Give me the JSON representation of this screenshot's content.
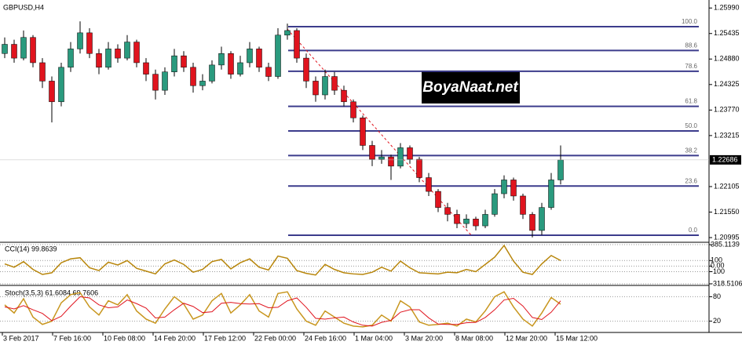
{
  "chart_data": {
    "type": "candlestick",
    "title": "GBPUSD,H4",
    "bull_color": "#2a9a7e",
    "bear_color": "#e0141e",
    "ylim": [
      1.2091,
      1.2613
    ],
    "yticks": [
      {
        "value": 1.2599,
        "label": "1.25990"
      },
      {
        "value": 1.25435,
        "label": "1.25435"
      },
      {
        "value": 1.2488,
        "label": "1.24880"
      },
      {
        "value": 1.24325,
        "label": "1.24325"
      },
      {
        "value": 1.2377,
        "label": "1.23770"
      },
      {
        "value": 1.23215,
        "label": "1.23215"
      },
      {
        "value": 1.22105,
        "label": "1.22105"
      },
      {
        "value": 1.2155,
        "label": "1.21550"
      },
      {
        "value": 1.20995,
        "label": "1.20995"
      }
    ],
    "current_price": 1.22686,
    "ohlc": [
      [
        1.25,
        1.2535,
        1.249,
        1.252
      ],
      [
        1.252,
        1.253,
        1.248,
        1.249
      ],
      [
        1.249,
        1.255,
        1.2485,
        1.2535
      ],
      [
        1.2535,
        1.254,
        1.247,
        1.248
      ],
      [
        1.248,
        1.249,
        1.2425,
        1.244
      ],
      [
        1.244,
        1.245,
        1.235,
        1.2395
      ],
      [
        1.2395,
        1.248,
        1.2385,
        1.247
      ],
      [
        1.247,
        1.2525,
        1.246,
        1.251
      ],
      [
        1.251,
        1.257,
        1.25,
        1.2545
      ],
      [
        1.2545,
        1.2555,
        1.249,
        1.25
      ],
      [
        1.25,
        1.251,
        1.2455,
        1.247
      ],
      [
        1.247,
        1.2525,
        1.2465,
        1.251
      ],
      [
        1.251,
        1.252,
        1.248,
        1.249
      ],
      [
        1.249,
        1.254,
        1.2485,
        1.2525
      ],
      [
        1.2525,
        1.253,
        1.247,
        1.248
      ],
      [
        1.248,
        1.249,
        1.244,
        1.2455
      ],
      [
        1.2455,
        1.2465,
        1.24,
        1.242
      ],
      [
        1.242,
        1.247,
        1.241,
        1.246
      ],
      [
        1.246,
        1.251,
        1.245,
        1.2495
      ],
      [
        1.2495,
        1.2505,
        1.246,
        1.247
      ],
      [
        1.247,
        1.248,
        1.2415,
        1.243
      ],
      [
        1.243,
        1.2455,
        1.242,
        1.244
      ],
      [
        1.244,
        1.2485,
        1.2435,
        1.2475
      ],
      [
        1.2475,
        1.2515,
        1.2465,
        1.25
      ],
      [
        1.25,
        1.2505,
        1.2445,
        1.2455
      ],
      [
        1.2455,
        1.2495,
        1.245,
        1.248
      ],
      [
        1.248,
        1.2525,
        1.247,
        1.251
      ],
      [
        1.251,
        1.2515,
        1.246,
        1.247
      ],
      [
        1.247,
        1.248,
        1.244,
        1.245
      ],
      [
        1.245,
        1.2555,
        1.2445,
        1.254
      ],
      [
        1.254,
        1.2565,
        1.253,
        1.255
      ],
      [
        1.255,
        1.2555,
        1.248,
        1.249
      ],
      [
        1.249,
        1.25,
        1.2425,
        1.244
      ],
      [
        1.244,
        1.245,
        1.2395,
        1.241
      ],
      [
        1.241,
        1.2465,
        1.24,
        1.245
      ],
      [
        1.245,
        1.246,
        1.241,
        1.242
      ],
      [
        1.242,
        1.243,
        1.2385,
        1.2395
      ],
      [
        1.2395,
        1.24,
        1.235,
        1.236
      ],
      [
        1.236,
        1.2365,
        1.229,
        1.23
      ],
      [
        1.23,
        1.231,
        1.2255,
        1.227
      ],
      [
        1.227,
        1.229,
        1.226,
        1.2275
      ],
      [
        1.2275,
        1.228,
        1.2225,
        1.2255
      ],
      [
        1.2255,
        1.2305,
        1.225,
        1.2295
      ],
      [
        1.2295,
        1.23,
        1.226,
        1.227
      ],
      [
        1.227,
        1.2275,
        1.222,
        1.223
      ],
      [
        1.223,
        1.224,
        1.219,
        1.22
      ],
      [
        1.22,
        1.2205,
        1.2155,
        1.2165
      ],
      [
        1.2165,
        1.2175,
        1.2135,
        1.215
      ],
      [
        1.215,
        1.216,
        1.212,
        1.213
      ],
      [
        1.213,
        1.215,
        1.212,
        1.214
      ],
      [
        1.214,
        1.2145,
        1.2115,
        1.2125
      ],
      [
        1.2125,
        1.216,
        1.212,
        1.215
      ],
      [
        1.215,
        1.2205,
        1.2145,
        1.2195
      ],
      [
        1.2195,
        1.2235,
        1.2185,
        1.2225
      ],
      [
        1.2225,
        1.223,
        1.218,
        1.219
      ],
      [
        1.219,
        1.2195,
        1.214,
        1.215
      ],
      [
        1.215,
        1.2155,
        1.21,
        1.2115
      ],
      [
        1.2115,
        1.2175,
        1.2105,
        1.2165
      ],
      [
        1.2165,
        1.224,
        1.216,
        1.2225
      ],
      [
        1.2225,
        1.23,
        1.2215,
        1.22686
      ]
    ],
    "fib": {
      "color": "#3c3c8c",
      "levels": [
        {
          "label": "100.0",
          "price": 1.25584
        },
        {
          "label": "88.6",
          "price": 1.25067
        },
        {
          "label": "78.6",
          "price": 1.24613
        },
        {
          "label": "61.8",
          "price": 1.23851
        },
        {
          "label": "50.0",
          "price": 1.23315
        },
        {
          "label": "38.2",
          "price": 1.2278
        },
        {
          "label": "23.6",
          "price": 1.22117
        },
        {
          "label": "0.0",
          "price": 1.21046
        }
      ]
    },
    "trendline": {
      "start": 1.2553,
      "end": 1.2105,
      "color": "#e0141e"
    },
    "watermark": "BoyaNaat.net",
    "cci": {
      "title": "CCI(14) 99.8639",
      "color": "#b8860b",
      "ylim": [
        -318.5106,
        385.1139
      ],
      "yticks": [
        385.1139,
        100,
        {
          "value": 0,
          "label": "0.00"
        },
        -100,
        -318.5106
      ],
      "values": [
        40,
        -20,
        80,
        -60,
        -150,
        -120,
        60,
        130,
        150,
        -30,
        -80,
        70,
        20,
        100,
        -40,
        -90,
        -140,
        40,
        110,
        30,
        -110,
        -60,
        80,
        120,
        -50,
        60,
        130,
        -20,
        -70,
        180,
        140,
        -80,
        -130,
        -160,
        30,
        -60,
        -120,
        -140,
        -150,
        -110,
        -20,
        -90,
        90,
        -30,
        -120,
        -130,
        -140,
        -110,
        -120,
        -60,
        -100,
        30,
        160,
        370,
        90,
        -110,
        -150,
        40,
        190,
        99.8639
      ]
    },
    "stoch": {
      "title": "Stoch(3,5,3) 61.6084 69.7606",
      "ylim": [
        0,
        100
      ],
      "yticks": [
        20,
        80
      ],
      "series": [
        {
          "color": "#c8961e",
          "values": [
            60,
            40,
            75,
            30,
            12,
            20,
            65,
            85,
            90,
            55,
            35,
            70,
            60,
            85,
            45,
            25,
            15,
            50,
            80,
            62,
            25,
            35,
            70,
            88,
            40,
            60,
            85,
            45,
            30,
            88,
            92,
            50,
            20,
            10,
            45,
            30,
            15,
            8,
            6,
            10,
            35,
            20,
            70,
            55,
            18,
            10,
            12,
            15,
            8,
            25,
            18,
            45,
            80,
            92,
            55,
            25,
            8,
            40,
            78,
            61.6084
          ]
        },
        {
          "color": "#e0141e",
          "values": [
            55,
            50,
            58,
            48,
            39,
            21,
            32,
            57,
            80,
            77,
            60,
            53,
            55,
            72,
            63,
            52,
            28,
            30,
            48,
            64,
            56,
            41,
            43,
            64,
            66,
            63,
            62,
            63,
            53,
            54,
            70,
            77,
            54,
            27,
            25,
            28,
            30,
            18,
            10,
            8,
            17,
            22,
            42,
            48,
            48,
            28,
            13,
            12,
            12,
            16,
            17,
            29,
            48,
            72,
            76,
            57,
            29,
            24,
            42,
            69.7606
          ]
        }
      ]
    },
    "xlabels": [
      "3 Feb 2017",
      "7 Feb 16:00",
      "10 Feb 08:00",
      "14 Feb 20:00",
      "17 Feb 12:00",
      "22 Feb 00:00",
      "24 Feb 16:00",
      "1 Mar 04:00",
      "3 Mar 20:00",
      "8 Mar 08:00",
      "12 Mar 20:00",
      "15 Mar 12:00"
    ]
  }
}
